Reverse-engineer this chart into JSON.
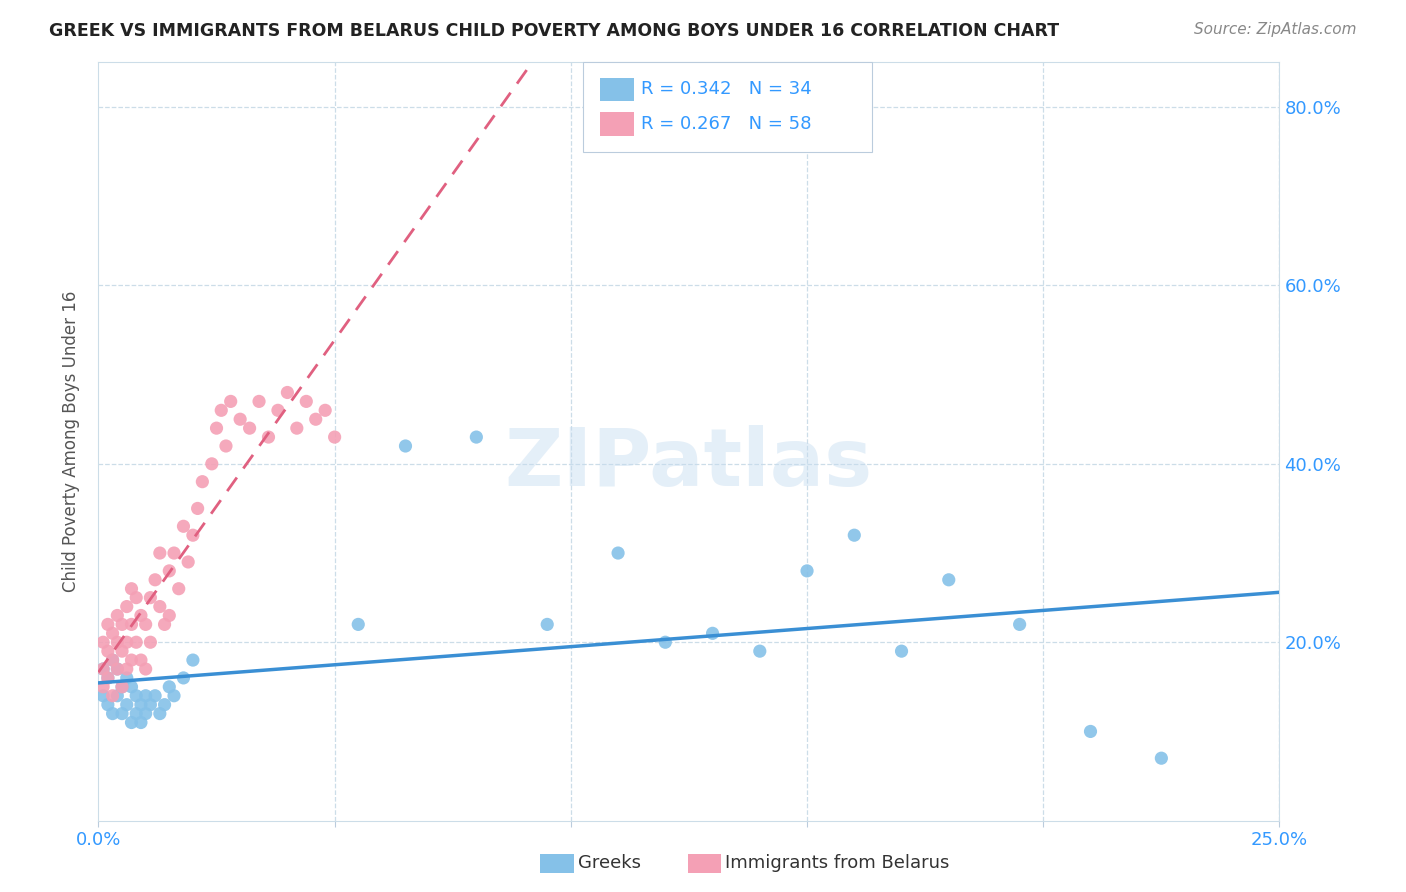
{
  "title": "GREEK VS IMMIGRANTS FROM BELARUS CHILD POVERTY AMONG BOYS UNDER 16 CORRELATION CHART",
  "source": "Source: ZipAtlas.com",
  "ylabel": "Child Poverty Among Boys Under 16",
  "color_blue": "#85c1e8",
  "color_pink": "#f4a0b5",
  "color_trendline_blue": "#3a8fd4",
  "color_trendline_pink": "#e06080",
  "watermark": "ZIPatlas",
  "xlim": [
    0.0,
    0.25
  ],
  "ylim": [
    0.0,
    0.85
  ],
  "greeks_x": [
    0.001,
    0.001,
    0.002,
    0.002,
    0.003,
    0.003,
    0.004,
    0.004,
    0.005,
    0.005,
    0.006,
    0.006,
    0.007,
    0.007,
    0.008,
    0.008,
    0.009,
    0.009,
    0.01,
    0.01,
    0.011,
    0.012,
    0.013,
    0.014,
    0.015,
    0.016,
    0.018,
    0.02,
    0.055,
    0.065,
    0.08,
    0.095,
    0.11,
    0.12,
    0.13,
    0.14,
    0.15,
    0.16,
    0.17,
    0.18,
    0.195,
    0.21,
    0.225
  ],
  "greeks_y": [
    0.17,
    0.14,
    0.16,
    0.13,
    0.18,
    0.12,
    0.17,
    0.14,
    0.15,
    0.12,
    0.16,
    0.13,
    0.15,
    0.11,
    0.14,
    0.12,
    0.13,
    0.11,
    0.14,
    0.12,
    0.13,
    0.14,
    0.12,
    0.13,
    0.15,
    0.14,
    0.16,
    0.18,
    0.22,
    0.42,
    0.43,
    0.22,
    0.3,
    0.2,
    0.21,
    0.19,
    0.28,
    0.32,
    0.19,
    0.27,
    0.22,
    0.1,
    0.07
  ],
  "belarus_x": [
    0.001,
    0.001,
    0.001,
    0.002,
    0.002,
    0.002,
    0.003,
    0.003,
    0.003,
    0.004,
    0.004,
    0.004,
    0.005,
    0.005,
    0.005,
    0.006,
    0.006,
    0.006,
    0.007,
    0.007,
    0.007,
    0.008,
    0.008,
    0.009,
    0.009,
    0.01,
    0.01,
    0.011,
    0.011,
    0.012,
    0.013,
    0.013,
    0.014,
    0.015,
    0.015,
    0.016,
    0.017,
    0.018,
    0.019,
    0.02,
    0.021,
    0.022,
    0.024,
    0.025,
    0.026,
    0.027,
    0.028,
    0.03,
    0.032,
    0.034,
    0.036,
    0.038,
    0.04,
    0.042,
    0.044,
    0.046,
    0.048,
    0.05
  ],
  "belarus_y": [
    0.17,
    0.2,
    0.15,
    0.19,
    0.22,
    0.16,
    0.21,
    0.18,
    0.14,
    0.2,
    0.23,
    0.17,
    0.22,
    0.19,
    0.15,
    0.24,
    0.2,
    0.17,
    0.26,
    0.22,
    0.18,
    0.25,
    0.2,
    0.23,
    0.18,
    0.22,
    0.17,
    0.25,
    0.2,
    0.27,
    0.3,
    0.24,
    0.22,
    0.28,
    0.23,
    0.3,
    0.26,
    0.33,
    0.29,
    0.32,
    0.35,
    0.38,
    0.4,
    0.44,
    0.46,
    0.42,
    0.47,
    0.45,
    0.44,
    0.47,
    0.43,
    0.46,
    0.48,
    0.44,
    0.47,
    0.45,
    0.46,
    0.43
  ]
}
